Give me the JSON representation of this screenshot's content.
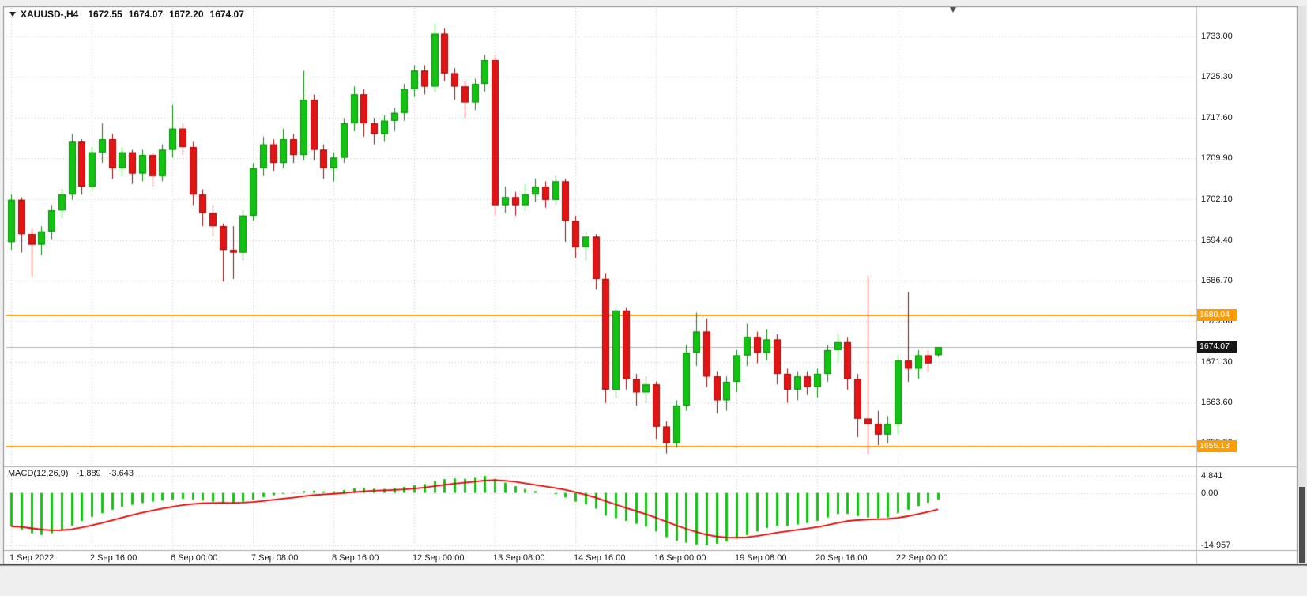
{
  "header": {
    "dropdown_icon": "triangle-down-icon",
    "symbol": "XAUUSD-,H4",
    "open": "1672.55",
    "high": "1674.07",
    "low": "1672.20",
    "close": "1674.07"
  },
  "shift_marker_icon": "triangle-down-icon",
  "chart_data": {
    "type": "candlestick",
    "title": "XAUUSD- H4",
    "y_axis": {
      "labels": [
        {
          "text": "1733.00",
          "value": 1733.0
        },
        {
          "text": "1725.30",
          "value": 1725.3
        },
        {
          "text": "1717.60",
          "value": 1717.6
        },
        {
          "text": "1709.90",
          "value": 1709.9
        },
        {
          "text": "1702.10",
          "value": 1702.1
        },
        {
          "text": "1694.40",
          "value": 1694.4
        },
        {
          "text": "1686.70",
          "value": 1686.7
        },
        {
          "text": "1679.00",
          "value": 1679.0
        },
        {
          "text": "1671.30",
          "value": 1671.3
        },
        {
          "text": "1663.60",
          "value": 1663.6
        },
        {
          "text": "1655.90",
          "value": 1655.9
        }
      ]
    },
    "x_labels": [
      {
        "text": "1 Sep 2022",
        "index": 0
      },
      {
        "text": "2 Sep 16:00",
        "index": 8
      },
      {
        "text": "6 Sep 00:00",
        "index": 16
      },
      {
        "text": "7 Sep 08:00",
        "index": 24
      },
      {
        "text": "8 Sep 16:00",
        "index": 32
      },
      {
        "text": "12 Sep 00:00",
        "index": 40
      },
      {
        "text": "13 Sep 08:00",
        "index": 48
      },
      {
        "text": "14 Sep 16:00",
        "index": 56
      },
      {
        "text": "16 Sep 00:00",
        "index": 64
      },
      {
        "text": "19 Sep 08:00",
        "index": 72
      },
      {
        "text": "20 Sep 16:00",
        "index": 80
      },
      {
        "text": "22 Sep 00:00",
        "index": 88
      }
    ],
    "candles": [
      [
        1694.0,
        1703.0,
        1692.5,
        1702.0
      ],
      [
        1702.0,
        1702.5,
        1692.0,
        1695.5
      ],
      [
        1695.5,
        1696.5,
        1687.5,
        1693.5
      ],
      [
        1693.5,
        1697.0,
        1691.5,
        1696.0
      ],
      [
        1696.0,
        1701.0,
        1694.5,
        1700.0
      ],
      [
        1700.0,
        1704.0,
        1698.5,
        1703.0
      ],
      [
        1703.0,
        1714.5,
        1702.0,
        1713.0
      ],
      [
        1713.0,
        1713.5,
        1703.0,
        1704.5
      ],
      [
        1704.5,
        1712.0,
        1703.5,
        1711.0
      ],
      [
        1711.0,
        1716.5,
        1709.0,
        1713.5
      ],
      [
        1713.5,
        1714.5,
        1706.0,
        1708.0
      ],
      [
        1708.0,
        1712.0,
        1706.5,
        1711.0
      ],
      [
        1711.0,
        1711.5,
        1705.0,
        1707.0
      ],
      [
        1707.0,
        1711.5,
        1705.5,
        1710.5
      ],
      [
        1710.5,
        1711.0,
        1704.5,
        1706.5
      ],
      [
        1706.5,
        1712.5,
        1705.5,
        1711.5
      ],
      [
        1711.5,
        1720.0,
        1710.0,
        1715.5
      ],
      [
        1715.5,
        1716.5,
        1710.5,
        1712.0
      ],
      [
        1712.0,
        1713.0,
        1701.0,
        1703.0
      ],
      [
        1703.0,
        1704.0,
        1697.0,
        1699.5
      ],
      [
        1699.5,
        1701.0,
        1695.0,
        1697.0
      ],
      [
        1697.0,
        1697.5,
        1686.5,
        1692.5
      ],
      [
        1692.5,
        1697.0,
        1687.0,
        1692.0
      ],
      [
        1692.0,
        1700.0,
        1690.5,
        1699.0
      ],
      [
        1699.0,
        1709.0,
        1698.0,
        1708.0
      ],
      [
        1708.0,
        1714.0,
        1706.5,
        1712.5
      ],
      [
        1712.5,
        1713.5,
        1707.5,
        1709.0
      ],
      [
        1709.0,
        1715.5,
        1708.0,
        1713.5
      ],
      [
        1713.5,
        1714.5,
        1709.0,
        1710.5
      ],
      [
        1710.5,
        1726.5,
        1709.5,
        1721.0
      ],
      [
        1721.0,
        1722.0,
        1709.5,
        1711.5
      ],
      [
        1711.5,
        1712.5,
        1706.0,
        1708.0
      ],
      [
        1708.0,
        1711.0,
        1705.5,
        1710.0
      ],
      [
        1710.0,
        1717.5,
        1709.0,
        1716.5
      ],
      [
        1716.5,
        1723.5,
        1715.0,
        1722.0
      ],
      [
        1722.0,
        1723.0,
        1714.0,
        1716.5
      ],
      [
        1716.5,
        1717.5,
        1712.5,
        1714.5
      ],
      [
        1714.5,
        1718.0,
        1713.0,
        1717.0
      ],
      [
        1717.0,
        1719.5,
        1715.0,
        1718.5
      ],
      [
        1718.5,
        1724.0,
        1717.0,
        1723.0
      ],
      [
        1723.0,
        1727.5,
        1721.5,
        1726.5
      ],
      [
        1726.5,
        1727.5,
        1722.0,
        1723.5
      ],
      [
        1723.5,
        1735.5,
        1722.5,
        1733.5
      ],
      [
        1733.5,
        1734.5,
        1724.5,
        1726.0
      ],
      [
        1726.0,
        1727.0,
        1721.0,
        1723.5
      ],
      [
        1723.5,
        1724.5,
        1717.5,
        1720.5
      ],
      [
        1720.5,
        1725.0,
        1719.0,
        1724.0
      ],
      [
        1724.0,
        1729.5,
        1722.5,
        1728.5
      ],
      [
        1728.5,
        1729.5,
        1699.0,
        1701.0
      ],
      [
        1701.0,
        1704.5,
        1699.5,
        1702.5
      ],
      [
        1702.5,
        1703.5,
        1699.0,
        1701.0
      ],
      [
        1701.0,
        1705.0,
        1700.0,
        1703.0
      ],
      [
        1703.0,
        1706.0,
        1701.5,
        1704.5
      ],
      [
        1704.5,
        1705.5,
        1700.5,
        1702.0
      ],
      [
        1702.0,
        1706.5,
        1701.0,
        1705.5
      ],
      [
        1705.5,
        1706.0,
        1694.0,
        1698.0
      ],
      [
        1698.0,
        1699.0,
        1691.0,
        1693.0
      ],
      [
        1693.0,
        1696.0,
        1690.5,
        1695.0
      ],
      [
        1695.0,
        1695.5,
        1685.0,
        1687.0
      ],
      [
        1687.0,
        1688.0,
        1663.5,
        1666.0
      ],
      [
        1666.0,
        1681.5,
        1664.5,
        1681.0
      ],
      [
        1681.0,
        1681.5,
        1666.0,
        1668.0
      ],
      [
        1668.0,
        1669.0,
        1663.0,
        1665.5
      ],
      [
        1665.5,
        1668.5,
        1663.5,
        1667.0
      ],
      [
        1667.0,
        1667.5,
        1656.5,
        1659.0
      ],
      [
        1659.0,
        1660.0,
        1653.9,
        1655.9
      ],
      [
        1655.9,
        1664.0,
        1655.0,
        1663.0
      ],
      [
        1663.0,
        1674.5,
        1662.0,
        1673.0
      ],
      [
        1673.0,
        1680.6,
        1670.5,
        1677.0
      ],
      [
        1677.0,
        1679.5,
        1666.5,
        1668.5
      ],
      [
        1668.5,
        1669.5,
        1661.5,
        1664.0
      ],
      [
        1664.0,
        1668.5,
        1662.0,
        1667.5
      ],
      [
        1667.5,
        1673.5,
        1665.5,
        1672.5
      ],
      [
        1672.5,
        1678.5,
        1670.5,
        1676.0
      ],
      [
        1676.0,
        1677.0,
        1671.0,
        1673.0
      ],
      [
        1673.0,
        1677.5,
        1671.5,
        1675.5
      ],
      [
        1675.5,
        1676.5,
        1667.0,
        1669.0
      ],
      [
        1669.0,
        1670.0,
        1663.5,
        1666.0
      ],
      [
        1666.0,
        1669.5,
        1664.0,
        1668.5
      ],
      [
        1668.5,
        1669.5,
        1665.0,
        1666.5
      ],
      [
        1666.5,
        1670.0,
        1664.5,
        1669.0
      ],
      [
        1669.0,
        1674.5,
        1667.5,
        1673.5
      ],
      [
        1673.5,
        1676.5,
        1671.0,
        1675.0
      ],
      [
        1675.0,
        1676.0,
        1666.0,
        1668.0
      ],
      [
        1668.0,
        1669.0,
        1657.0,
        1660.5
      ],
      [
        1660.5,
        1687.6,
        1653.8,
        1659.5
      ],
      [
        1659.5,
        1662.0,
        1655.5,
        1657.5
      ],
      [
        1657.5,
        1661.0,
        1655.8,
        1659.5
      ],
      [
        1659.5,
        1672.5,
        1657.5,
        1671.5
      ],
      [
        1671.5,
        1684.5,
        1667.5,
        1670.0
      ],
      [
        1670.0,
        1673.5,
        1668.0,
        1672.5
      ],
      [
        1672.5,
        1673.5,
        1669.5,
        1671.0
      ],
      [
        1672.55,
        1674.07,
        1672.2,
        1674.07
      ]
    ],
    "hlines": [
      {
        "price": 1680.04,
        "label": "1680.04"
      },
      {
        "price": 1655.13,
        "label": "1655.13"
      }
    ],
    "current_price": {
      "value": 1674.07,
      "label": "1674.07"
    },
    "macd": {
      "info": {
        "label": "MACD(12,26,9)",
        "main": "-1.889",
        "signal": "-3.643"
      },
      "signal_period": 9,
      "axis_labels": [
        {
          "text": "4.841",
          "value": 4.841
        },
        {
          "text": "0.00",
          "value": 0.0
        },
        {
          "text": "-14.957",
          "value": -14.957
        }
      ],
      "histogram": [
        -9.5,
        -10.5,
        -11.5,
        -12.0,
        -11.5,
        -10.5,
        -9.3,
        -8.0,
        -6.8,
        -5.8,
        -4.8,
        -4.0,
        -3.4,
        -2.9,
        -2.5,
        -2.2,
        -1.9,
        -1.7,
        -1.9,
        -2.2,
        -2.5,
        -2.8,
        -2.9,
        -2.5,
        -1.9,
        -1.2,
        -0.7,
        -0.3,
        -0.1,
        0.5,
        0.6,
        0.4,
        0.4,
        0.8,
        1.3,
        1.4,
        1.2,
        1.1,
        1.3,
        1.7,
        2.2,
        2.5,
        3.4,
        3.9,
        4.1,
        4.0,
        4.3,
        4.841,
        4.0,
        2.9,
        1.9,
        1.1,
        0.5,
        0.0,
        -0.4,
        -1.3,
        -2.5,
        -3.3,
        -4.5,
        -6.5,
        -7.2,
        -8.0,
        -8.8,
        -9.6,
        -11.0,
        -12.6,
        -13.6,
        -14.2,
        -14.7,
        -14.957,
        -14.5,
        -13.8,
        -13.0,
        -12.0,
        -11.0,
        -10.0,
        -9.4,
        -9.4,
        -9.0,
        -8.6,
        -8.0,
        -7.0,
        -6.0,
        -6.0,
        -6.6,
        -7.0,
        -7.2,
        -7.0,
        -5.8,
        -4.8,
        -3.8,
        -2.8,
        -1.889
      ]
    },
    "colors": {
      "bull": "#12c312",
      "bull_border": "#0a8a0a",
      "bear": "#e51414",
      "bear_border": "#9a0d0d",
      "grid": "#c4c4c4",
      "hline": "#ff9d00",
      "current_line": "#b5b5b5",
      "macd_hist": "#12c312",
      "macd_signal": "#e30000",
      "frame": "#8c8c8c"
    }
  }
}
